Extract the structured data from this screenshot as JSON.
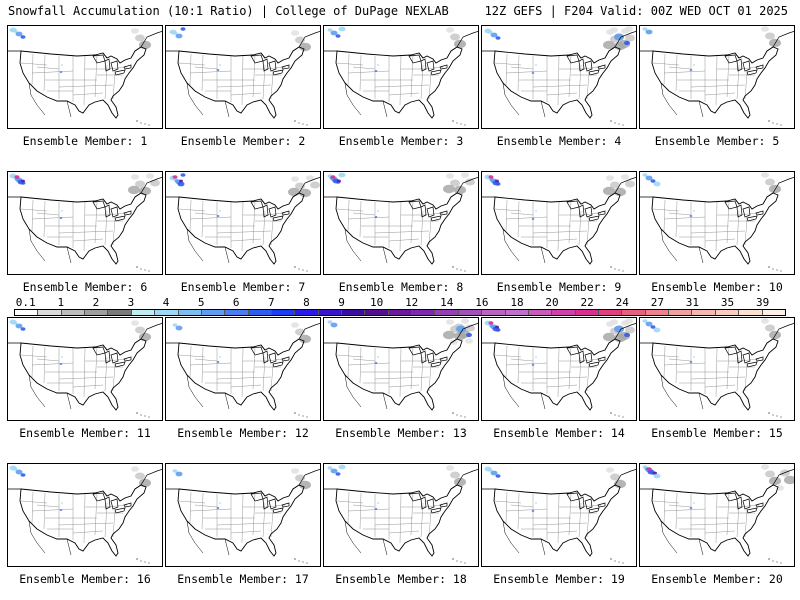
{
  "header": {
    "left": "Snowfall Accumulation (10:1 Ratio) | College of DuPage NEXLAB",
    "right": "12Z GEFS | F204 Valid: 00Z WED OCT 01 2025"
  },
  "members": [
    {
      "label": "Ensemble Member: 1",
      "ne": "light",
      "nw": "medium"
    },
    {
      "label": "Ensemble Member: 2",
      "ne": "light",
      "nw": "medium"
    },
    {
      "label": "Ensemble Member: 3",
      "ne": "light",
      "nw": "medium"
    },
    {
      "label": "Ensemble Member: 4",
      "ne": "heavy",
      "nw": "medium"
    },
    {
      "label": "Ensemble Member: 5",
      "ne": "light",
      "nw": "light"
    },
    {
      "label": "Ensemble Member: 6",
      "ne": "medium",
      "nw": "heavy"
    },
    {
      "label": "Ensemble Member: 7",
      "ne": "medium",
      "nw": "heavy"
    },
    {
      "label": "Ensemble Member: 8",
      "ne": "medium",
      "nw": "heavy"
    },
    {
      "label": "Ensemble Member: 9",
      "ne": "medium",
      "nw": "heavy"
    },
    {
      "label": "Ensemble Member: 10",
      "ne": "light",
      "nw": "medium"
    },
    {
      "label": "Ensemble Member: 11",
      "ne": "light",
      "nw": "medium"
    },
    {
      "label": "Ensemble Member: 12",
      "ne": "light",
      "nw": "light"
    },
    {
      "label": "Ensemble Member: 13",
      "ne": "heavy",
      "nw": "light"
    },
    {
      "label": "Ensemble Member: 14",
      "ne": "heavy",
      "nw": "heavy"
    },
    {
      "label": "Ensemble Member: 15",
      "ne": "light",
      "nw": "medium"
    },
    {
      "label": "Ensemble Member: 16",
      "ne": "light",
      "nw": "medium"
    },
    {
      "label": "Ensemble Member: 17",
      "ne": "light",
      "nw": "light"
    },
    {
      "label": "Ensemble Member: 18",
      "ne": "light",
      "nw": "medium"
    },
    {
      "label": "Ensemble Member: 19",
      "ne": "light",
      "nw": "medium"
    },
    {
      "label": "Ensemble Member: 20",
      "ne": "medium",
      "nw": "heavy"
    }
  ],
  "legend": {
    "ticks": [
      "0.1",
      "1",
      "2",
      "3",
      "4",
      "5",
      "6",
      "7",
      "8",
      "9",
      "10",
      "12",
      "14",
      "16",
      "18",
      "20",
      "22",
      "24",
      "27",
      "31",
      "35",
      "39"
    ],
    "colors": [
      "#ffffff",
      "#dcdcdc",
      "#bdbdbd",
      "#9e9e9e",
      "#7a7a7a",
      "#bfeef2",
      "#9ed8f5",
      "#7ebdf0",
      "#5f9df0",
      "#4a7ef0",
      "#2f5cf0",
      "#1a3ef0",
      "#2a1ae8",
      "#3a14c8",
      "#3a0e9e",
      "#52108e",
      "#6a1a9e",
      "#7e28b0",
      "#9440b4",
      "#a050b8",
      "#b864c0",
      "#c070c8",
      "#c85cb8",
      "#d040a8",
      "#d83090",
      "#e04080",
      "#e86080",
      "#f08090",
      "#f0a0a0",
      "#f4b8b0",
      "#f8cdbf",
      "#fce0d0",
      "#fef0e6"
    ]
  }
}
